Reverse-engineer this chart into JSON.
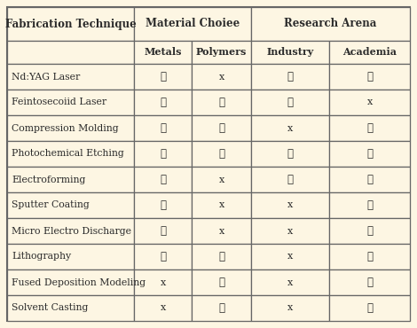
{
  "bg_color": "#fdf6e3",
  "border_color": "#666666",
  "col_header_1": "Material Choiee",
  "col_header_2": "Research Arena",
  "row_header": "Fabrication Technique",
  "sub_headers": [
    "Metals",
    "Polymers",
    "Industry",
    "Academia"
  ],
  "techniques": [
    "Nd:YAG Laser",
    "Feintosecoiid Laser",
    "Compression Molding",
    "Photochemical Etching",
    "Electroforming",
    "Sputter Coating",
    "Micro Electro Discharge",
    "Lithography",
    "Fused Deposition Modeling",
    "Solvent Casting"
  ],
  "table_data": [
    [
      "c",
      "x",
      "c",
      "c"
    ],
    [
      "c",
      "c",
      "c",
      "x"
    ],
    [
      "c",
      "c",
      "x",
      "c"
    ],
    [
      "c",
      "c",
      "c",
      "c"
    ],
    [
      "c",
      "x",
      "c",
      "c"
    ],
    [
      "c",
      "x",
      "x",
      "c"
    ],
    [
      "c",
      "x",
      "x",
      "c"
    ],
    [
      "c",
      "c",
      "x",
      "c"
    ],
    [
      "x",
      "c",
      "x",
      "c"
    ],
    [
      "x",
      "c",
      "x",
      "c"
    ]
  ],
  "check_char": "✓",
  "x_char": "x",
  "text_color": "#2b2b2b",
  "font_size_header": 8.5,
  "font_size_subheader": 8.0,
  "font_size_data": 7.8,
  "font_size_cell": 8.5
}
